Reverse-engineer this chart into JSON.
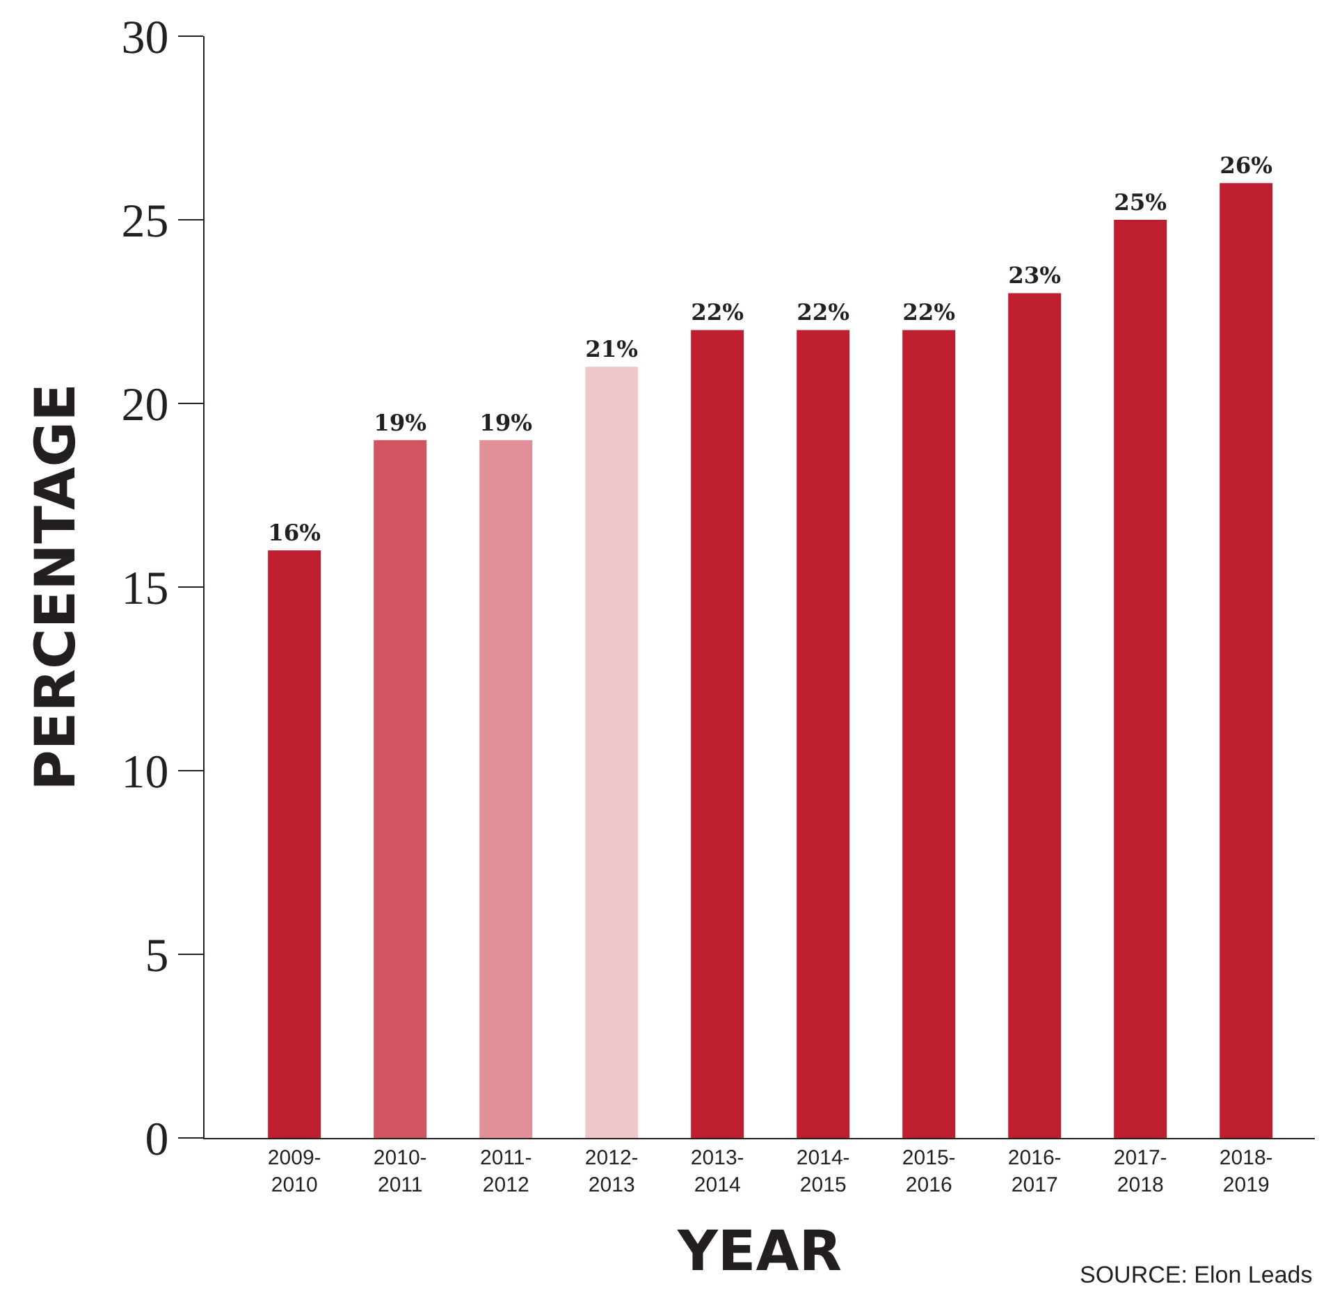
{
  "chart_data": {
    "type": "bar",
    "categories": [
      "2009-\n2010",
      "2010-\n2011",
      "2011-\n2012",
      "2012-\n2013",
      "2013-\n2014",
      "2014-\n2015",
      "2015-\n2016",
      "2016-\n2017",
      "2017-\n2018",
      "2018-\n2019"
    ],
    "values": [
      16,
      19,
      19,
      21,
      22,
      22,
      22,
      23,
      25,
      26
    ],
    "value_labels": [
      "16%",
      "19%",
      "19%",
      "21%",
      "22%",
      "22%",
      "22%",
      "23%",
      "25%",
      "26%"
    ],
    "colors": [
      "#be1e2d",
      "#d05561",
      "#e09096",
      "#f0c8cc",
      "#be1e2d",
      "#be1e2d",
      "#be1e2d",
      "#be1e2d",
      "#be1e2d",
      "#be1e2d"
    ],
    "xlabel": "YEAR",
    "ylabel": "PERCENTAGE",
    "ylim": [
      0,
      30
    ],
    "yticks": [
      0,
      5,
      10,
      15,
      20,
      25,
      30
    ],
    "annotations": [
      "SOURCE: Elon Leads"
    ]
  }
}
